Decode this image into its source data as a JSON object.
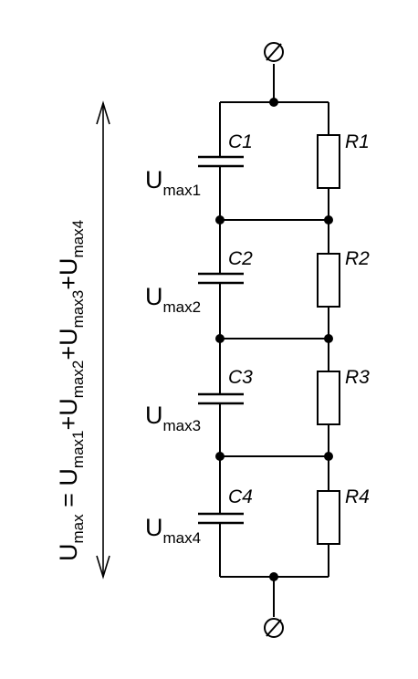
{
  "capacitors": [
    {
      "name": "C1",
      "voltage_main": "U",
      "voltage_sub": "max1"
    },
    {
      "name": "C2",
      "voltage_main": "U",
      "voltage_sub": "max2"
    },
    {
      "name": "C3",
      "voltage_main": "U",
      "voltage_sub": "max3"
    },
    {
      "name": "C4",
      "voltage_main": "U",
      "voltage_sub": "max4"
    }
  ],
  "resistors": [
    "R1",
    "R2",
    "R3",
    "R4"
  ],
  "terminals": {
    "top": "⊘",
    "bottom": "⊘"
  },
  "equation": {
    "lhs_main": "U",
    "lhs_sub": "max",
    "eq": " = ",
    "terms": [
      {
        "main": "U",
        "sub": "max1"
      },
      {
        "main": "U",
        "sub": "max2"
      },
      {
        "main": "U",
        "sub": "max3"
      },
      {
        "main": "U",
        "sub": "max4"
      }
    ],
    "plus": "+"
  }
}
